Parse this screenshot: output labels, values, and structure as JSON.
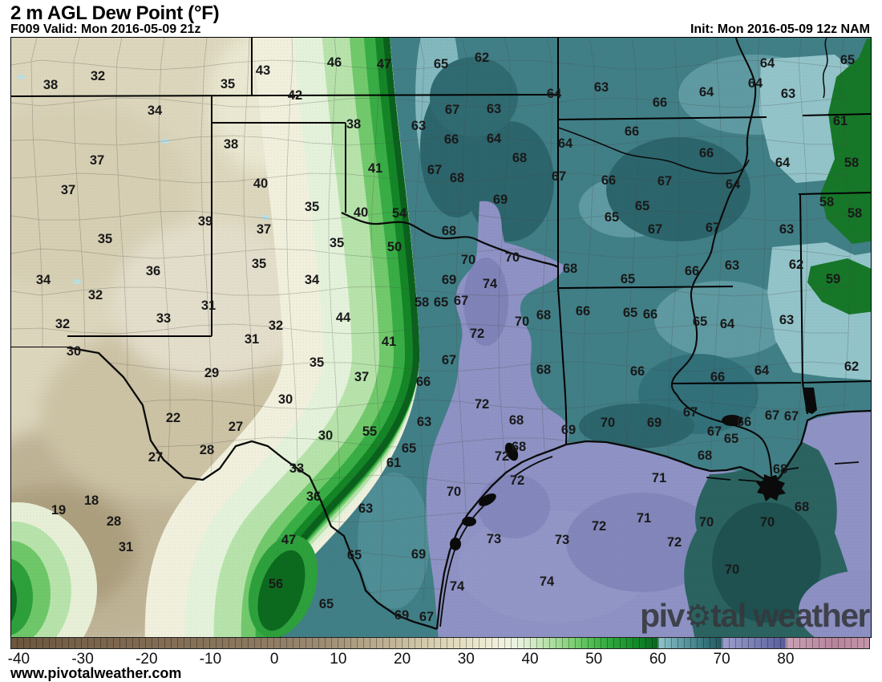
{
  "header": {
    "title": "2 m AGL Dew Point (°F)",
    "valid": "F009 Valid: Mon 2016-05-09 21z",
    "init": "Init: Mon 2016-05-09 12z NAM"
  },
  "watermark": {
    "part1": "piv",
    "part2": "tal",
    "part3": "weather",
    "gear_icon": "⚙"
  },
  "footer": {
    "url": "www.pivotalweather.com"
  },
  "colorbar": {
    "min": -41.3,
    "max": 93.2,
    "ticks": [
      -40,
      -30,
      -20,
      -10,
      0,
      10,
      20,
      30,
      40,
      50,
      60,
      70,
      80
    ],
    "stops": [
      [
        -41.3,
        "#6b553d"
      ],
      [
        -30,
        "#78624a"
      ],
      [
        -20,
        "#806a52"
      ],
      [
        -10,
        "#87735a"
      ],
      [
        -3,
        "#8c785f"
      ],
      [
        2,
        "#93806a"
      ],
      [
        8,
        "#9e8d74"
      ],
      [
        14,
        "#b2a386"
      ],
      [
        20,
        "#c6ba9d"
      ],
      [
        26,
        "#dbd3b5"
      ],
      [
        31,
        "#e8e3c8"
      ],
      [
        35,
        "#f0efdc"
      ],
      [
        38,
        "#ebf3e1"
      ],
      [
        41,
        "#cde9c0"
      ],
      [
        44,
        "#a6db98"
      ],
      [
        47,
        "#7ace72"
      ],
      [
        50,
        "#4aba4e"
      ],
      [
        53,
        "#2ca43b"
      ],
      [
        56,
        "#17902d"
      ],
      [
        59,
        "#0b7221"
      ],
      [
        60,
        "#09651d"
      ],
      [
        60.2,
        "#8fc3c9"
      ],
      [
        62,
        "#78b0b8"
      ],
      [
        64,
        "#5e99a2"
      ],
      [
        66,
        "#46848c"
      ],
      [
        68,
        "#326e76"
      ],
      [
        70,
        "#255b62"
      ],
      [
        70.2,
        "#9c9fcc"
      ],
      [
        73,
        "#898dc0"
      ],
      [
        76,
        "#7479b0"
      ],
      [
        79,
        "#6064a2"
      ],
      [
        80,
        "#575c9d"
      ],
      [
        80.2,
        "#c8a1b5"
      ],
      [
        84,
        "#bf92a8"
      ],
      [
        88,
        "#b6849c"
      ],
      [
        93.2,
        "#c795aa"
      ]
    ]
  },
  "map": {
    "labels": [
      [
        38,
        62,
        104
      ],
      [
        32,
        121,
        93
      ],
      [
        35,
        283,
        103
      ],
      [
        43,
        327,
        86
      ],
      [
        42,
        367,
        117
      ],
      [
        46,
        416,
        76
      ],
      [
        47,
        478,
        78
      ],
      [
        65,
        549,
        78
      ],
      [
        62,
        600,
        70
      ],
      [
        63,
        749,
        107
      ],
      [
        64,
        956,
        77
      ],
      [
        65,
        1056,
        73
      ],
      [
        64,
        941,
        102
      ],
      [
        63,
        982,
        115
      ],
      [
        64,
        880,
        113
      ],
      [
        66,
        822,
        126
      ],
      [
        61,
        1047,
        149
      ],
      [
        58,
        1061,
        201
      ],
      [
        34,
        192,
        136
      ],
      [
        38,
        287,
        178
      ],
      [
        37,
        120,
        198
      ],
      [
        37,
        84,
        235
      ],
      [
        40,
        324,
        227
      ],
      [
        39,
        255,
        274
      ],
      [
        37,
        328,
        284
      ],
      [
        35,
        130,
        296
      ],
      [
        38,
        440,
        153
      ],
      [
        63,
        521,
        155
      ],
      [
        67,
        563,
        135
      ],
      [
        63,
        615,
        134
      ],
      [
        64,
        690,
        115
      ],
      [
        66,
        562,
        172
      ],
      [
        64,
        615,
        171
      ],
      [
        64,
        704,
        177
      ],
      [
        68,
        647,
        195
      ],
      [
        41,
        467,
        208
      ],
      [
        67,
        541,
        210
      ],
      [
        68,
        569,
        220
      ],
      [
        67,
        696,
        218
      ],
      [
        69,
        623,
        247
      ],
      [
        35,
        388,
        256
      ],
      [
        40,
        449,
        263
      ],
      [
        54,
        497,
        264
      ],
      [
        68,
        559,
        286
      ],
      [
        66,
        787,
        162
      ],
      [
        66,
        880,
        189
      ],
      [
        64,
        975,
        201
      ],
      [
        66,
        758,
        223
      ],
      [
        67,
        828,
        224
      ],
      [
        64,
        913,
        228
      ],
      [
        65,
        800,
        255
      ],
      [
        65,
        762,
        269
      ],
      [
        58,
        1030,
        250
      ],
      [
        58,
        1065,
        264
      ],
      [
        67,
        816,
        284
      ],
      [
        67,
        888,
        282
      ],
      [
        63,
        980,
        284
      ],
      [
        35,
        322,
        327
      ],
      [
        34,
        53,
        347
      ],
      [
        36,
        190,
        336
      ],
      [
        32,
        118,
        366
      ],
      [
        31,
        259,
        379
      ],
      [
        33,
        203,
        395
      ],
      [
        32,
        77,
        402
      ],
      [
        32,
        343,
        404
      ],
      [
        31,
        313,
        421
      ],
      [
        30,
        91,
        436
      ],
      [
        29,
        263,
        463
      ],
      [
        30,
        355,
        496
      ],
      [
        22,
        215,
        519
      ],
      [
        27,
        293,
        530
      ],
      [
        35,
        419,
        301
      ],
      [
        50,
        491,
        306
      ],
      [
        70,
        583,
        322
      ],
      [
        70,
        638,
        319
      ],
      [
        34,
        388,
        347
      ],
      [
        69,
        559,
        347
      ],
      [
        74,
        610,
        352
      ],
      [
        68,
        710,
        333
      ],
      [
        58,
        525,
        375
      ],
      [
        65,
        549,
        375
      ],
      [
        67,
        574,
        373
      ],
      [
        44,
        427,
        394
      ],
      [
        70,
        650,
        399
      ],
      [
        68,
        677,
        391
      ],
      [
        66,
        726,
        386
      ],
      [
        41,
        484,
        424
      ],
      [
        72,
        594,
        414
      ],
      [
        35,
        394,
        450
      ],
      [
        67,
        559,
        447
      ],
      [
        37,
        450,
        468
      ],
      [
        66,
        527,
        474
      ],
      [
        68,
        677,
        459
      ],
      [
        72,
        600,
        502
      ],
      [
        63,
        528,
        524
      ],
      [
        68,
        643,
        522
      ],
      [
        55,
        460,
        536
      ],
      [
        30,
        405,
        541
      ],
      [
        69,
        708,
        534
      ],
      [
        65,
        782,
        346
      ],
      [
        66,
        862,
        336
      ],
      [
        63,
        912,
        329
      ],
      [
        62,
        992,
        328
      ],
      [
        59,
        1038,
        346
      ],
      [
        65,
        785,
        388
      ],
      [
        66,
        810,
        390
      ],
      [
        65,
        872,
        399
      ],
      [
        64,
        906,
        402
      ],
      [
        63,
        980,
        397
      ],
      [
        66,
        794,
        461
      ],
      [
        62,
        1061,
        455
      ],
      [
        66,
        894,
        468
      ],
      [
        64,
        949,
        460
      ],
      [
        67,
        860,
        512
      ],
      [
        66,
        927,
        524
      ],
      [
        67,
        962,
        516
      ],
      [
        67,
        986,
        517
      ],
      [
        70,
        757,
        525
      ],
      [
        69,
        815,
        525
      ],
      [
        67,
        890,
        536
      ],
      [
        65,
        911,
        545
      ],
      [
        27,
        193,
        568
      ],
      [
        28,
        257,
        559
      ],
      [
        18,
        113,
        622
      ],
      [
        19,
        72,
        634
      ],
      [
        28,
        141,
        648
      ],
      [
        31,
        156,
        680
      ],
      [
        47,
        359,
        671
      ],
      [
        56,
        343,
        726
      ],
      [
        33,
        369,
        582
      ],
      [
        65,
        509,
        557
      ],
      [
        61,
        490,
        575
      ],
      [
        68,
        646,
        555
      ],
      [
        72,
        625,
        567
      ],
      [
        72,
        644,
        597
      ],
      [
        36,
        390,
        617
      ],
      [
        63,
        455,
        632
      ],
      [
        70,
        565,
        611
      ],
      [
        73,
        615,
        670
      ],
      [
        73,
        700,
        671
      ],
      [
        65,
        441,
        690
      ],
      [
        69,
        521,
        689
      ],
      [
        74,
        569,
        729
      ],
      [
        74,
        681,
        723
      ],
      [
        65,
        406,
        751
      ],
      [
        69,
        500,
        765
      ],
      [
        67,
        531,
        767
      ],
      [
        68,
        878,
        566
      ],
      [
        68,
        972,
        583
      ],
      [
        71,
        821,
        594
      ],
      [
        68,
        999,
        630
      ],
      [
        71,
        802,
        644
      ],
      [
        72,
        746,
        654
      ],
      [
        70,
        880,
        649
      ],
      [
        70,
        956,
        649
      ],
      [
        72,
        840,
        674
      ],
      [
        70,
        912,
        708
      ]
    ]
  }
}
